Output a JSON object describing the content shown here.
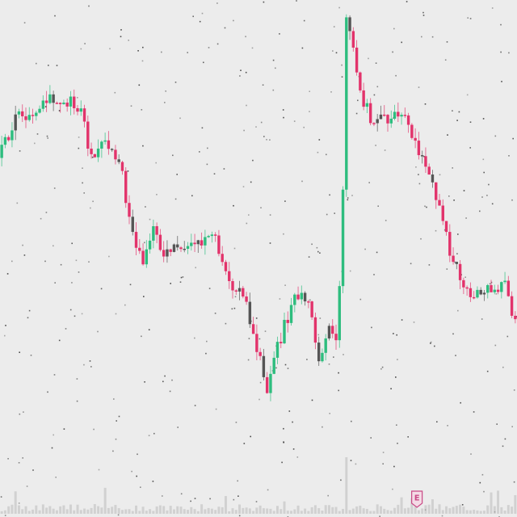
{
  "chart_data": {
    "type": "candlestick",
    "colors": {
      "background": "#ececec",
      "up": "#2dbd7e",
      "down": "#e2336b",
      "dark": "#555555",
      "volume": "#bcbcbc",
      "noise": "#2a2a2a"
    },
    "ylim": [
      0,
      100
    ],
    "grid": false,
    "legend": "none",
    "path": [
      [
        0,
        67
      ],
      [
        3,
        72
      ],
      [
        6,
        79
      ],
      [
        9,
        76
      ],
      [
        12,
        78
      ],
      [
        15,
        80
      ],
      [
        18,
        79
      ],
      [
        21,
        80
      ],
      [
        24,
        78
      ],
      [
        27,
        67
      ],
      [
        30,
        72
      ],
      [
        33,
        68
      ],
      [
        36,
        63
      ],
      [
        39,
        49
      ],
      [
        42,
        43
      ],
      [
        45,
        50
      ],
      [
        48,
        44
      ],
      [
        51,
        46
      ],
      [
        54,
        45
      ],
      [
        57,
        47
      ],
      [
        60,
        48
      ],
      [
        63,
        49
      ],
      [
        66,
        40
      ],
      [
        69,
        37
      ],
      [
        72,
        34
      ],
      [
        75,
        23
      ],
      [
        78,
        15
      ],
      [
        81,
        24
      ],
      [
        84,
        31
      ],
      [
        87,
        36
      ],
      [
        90,
        34
      ],
      [
        93,
        21
      ],
      [
        96,
        28
      ],
      [
        98.5,
        24
      ],
      [
        100,
        61
      ],
      [
        101,
        99
      ],
      [
        103,
        92
      ],
      [
        105,
        82
      ],
      [
        108,
        76
      ],
      [
        111,
        77
      ],
      [
        114,
        76
      ],
      [
        117,
        78
      ],
      [
        120,
        71
      ],
      [
        123,
        68
      ],
      [
        126,
        61
      ],
      [
        129,
        53
      ],
      [
        132,
        43
      ],
      [
        135,
        38
      ],
      [
        138,
        35
      ],
      [
        141,
        37
      ],
      [
        144,
        36
      ],
      [
        147,
        38
      ],
      [
        149,
        30
      ]
    ],
    "gap": [
      99,
      100
    ],
    "event_marker": {
      "x": 120,
      "label": "E"
    },
    "icons": {
      "event": "earnings-badge-icon"
    }
  }
}
